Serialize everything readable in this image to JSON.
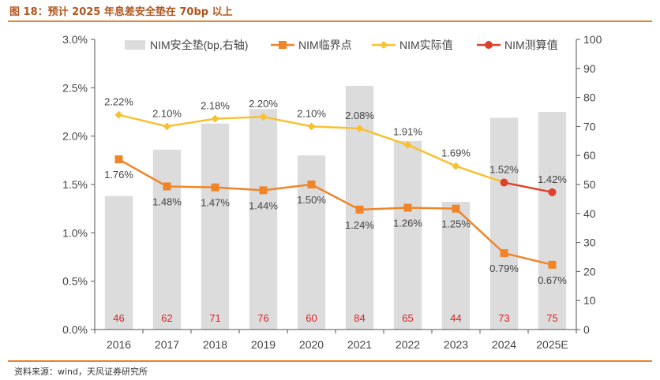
{
  "header": {
    "title": "图 18：预计 2025 年息差安全垫在 70bp 以上"
  },
  "footer": {
    "source": "资料来源：wind，天风证券研究所"
  },
  "chart_data": {
    "type": "bar+line",
    "title": "",
    "xlabel": "",
    "ylabel": "",
    "categories": [
      "2016",
      "2017",
      "2018",
      "2019",
      "2020",
      "2021",
      "2022",
      "2023",
      "2024",
      "2025E"
    ],
    "y_left": {
      "min": 0,
      "max": 3.0,
      "ticks": [
        0,
        0.5,
        1.0,
        1.5,
        2.0,
        2.5,
        3.0
      ],
      "tick_labels": [
        "0.0%",
        "0.5%",
        "1.0%",
        "1.5%",
        "2.0%",
        "2.5%",
        "3.0%"
      ]
    },
    "y_right": {
      "min": 0,
      "max": 100,
      "ticks": [
        0,
        10,
        20,
        30,
        40,
        50,
        60,
        70,
        80,
        90,
        100
      ],
      "tick_labels": [
        "0",
        "10",
        "20",
        "30",
        "40",
        "50",
        "60",
        "70",
        "80",
        "90",
        "100"
      ]
    },
    "grid": false,
    "legend_position": "top",
    "series": [
      {
        "name": "NIM安全垫(bp,右轴)",
        "type": "bar",
        "axis": "right",
        "color": "#dcdcdc",
        "label_color": "#e02020",
        "values": [
          46,
          62,
          71,
          76,
          60,
          84,
          65,
          44,
          73,
          75
        ],
        "labels": [
          "46",
          "62",
          "71",
          "76",
          "60",
          "84",
          "65",
          "44",
          "73",
          "75"
        ]
      },
      {
        "name": "NIM临界点",
        "type": "line",
        "axis": "left",
        "color": "#f08528",
        "marker": "square",
        "values": [
          1.76,
          1.48,
          1.47,
          1.44,
          1.5,
          1.24,
          1.26,
          1.25,
          0.79,
          0.67
        ],
        "labels": [
          "1.76%",
          "1.48%",
          "1.47%",
          "1.44%",
          "1.50%",
          "1.24%",
          "1.26%",
          "1.25%",
          "0.79%",
          "0.67%"
        ]
      },
      {
        "name": "NIM实际值",
        "type": "line",
        "axis": "left",
        "color": "#f8c132",
        "marker": "diamond",
        "values": [
          2.22,
          2.1,
          2.18,
          2.2,
          2.1,
          2.08,
          1.91,
          1.69,
          1.52,
          null
        ],
        "labels": [
          "2.22%",
          "2.10%",
          "2.18%",
          "2.20%",
          "2.10%",
          "2.08%",
          "1.91%",
          "1.69%",
          "1.52%",
          null
        ]
      },
      {
        "name": "NIM测算值",
        "type": "line",
        "axis": "left",
        "color": "#e0402a",
        "marker": "circle",
        "values": [
          null,
          null,
          null,
          null,
          null,
          null,
          null,
          null,
          1.52,
          1.42
        ],
        "labels": [
          null,
          null,
          null,
          null,
          null,
          null,
          null,
          null,
          null,
          "1.42%"
        ]
      }
    ]
  }
}
